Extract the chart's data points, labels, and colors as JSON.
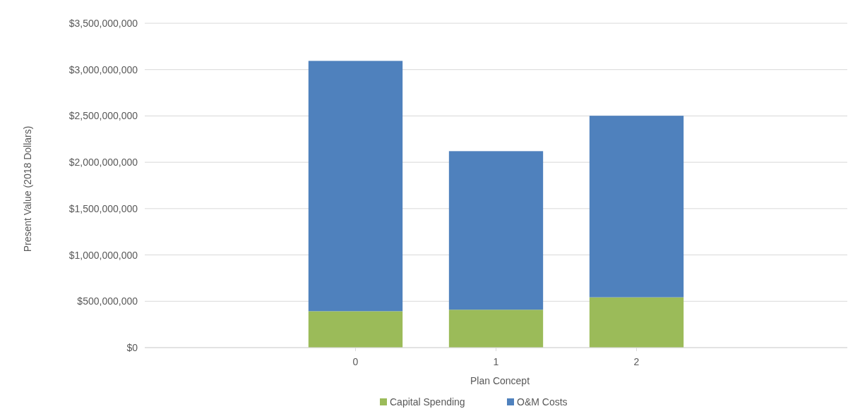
{
  "chart_data": {
    "type": "bar",
    "stacked": true,
    "xlabel": "Plan Concept",
    "ylabel": "Present Value (2018 Dollars)",
    "categories": [
      "0",
      "1",
      "2"
    ],
    "series": [
      {
        "name": "Capital Spending",
        "color": "#9bbb59",
        "values": [
          393000000,
          409000000,
          543000000
        ]
      },
      {
        "name": "O&M Costs",
        "color": "#4f81bd",
        "values": [
          2701000000,
          1711000000,
          1959000000
        ]
      }
    ],
    "ylim": [
      0,
      3500000000
    ],
    "yticks": [
      {
        "value": 0,
        "label": "$0"
      },
      {
        "value": 500000000,
        "label": "$500,000,000"
      },
      {
        "value": 1000000000,
        "label": "$1,000,000,000"
      },
      {
        "value": 1500000000,
        "label": "$1,500,000,000"
      },
      {
        "value": 2000000000,
        "label": "$2,000,000,000"
      },
      {
        "value": 2500000000,
        "label": "$2,500,000,000"
      },
      {
        "value": 3000000000,
        "label": "$3,000,000,000"
      },
      {
        "value": 3500000000,
        "label": "$3,500,000,000"
      }
    ],
    "grid": "y",
    "legend": "bottom"
  }
}
